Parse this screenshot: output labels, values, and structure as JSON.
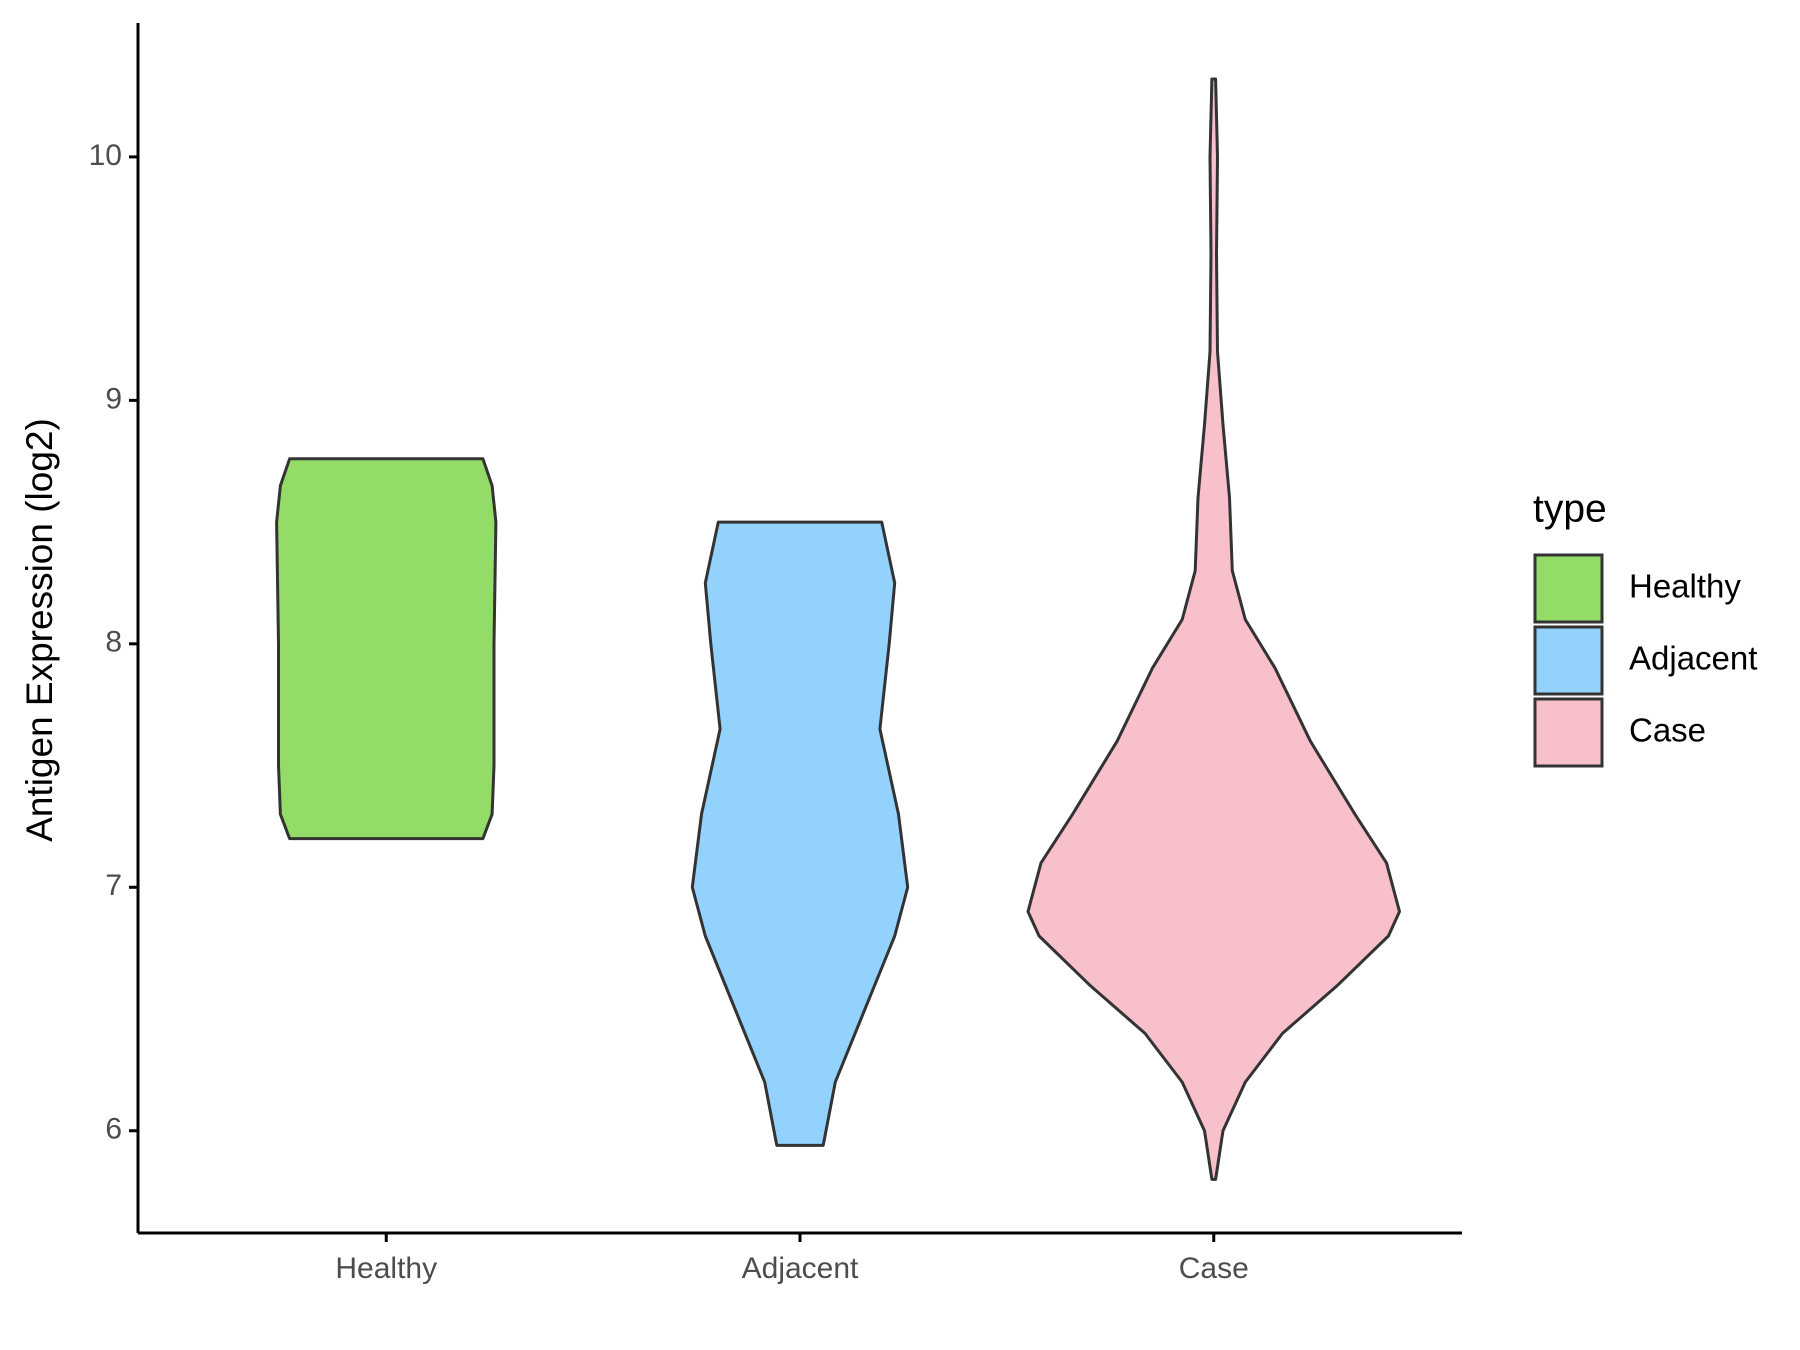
{
  "chart_data": {
    "type": "violin",
    "y_label": "Antigen Expression (log2)",
    "categories": [
      "Healthy",
      "Adjacent",
      "Case"
    ],
    "legend_title": "type",
    "legend": "right",
    "ylim": [
      5.58,
      10.55
    ],
    "yticks": [
      6,
      7,
      8,
      9,
      10
    ],
    "series": [
      {
        "name": "Healthy",
        "color": "#92dc67",
        "profile": [
          [
            7.2,
            0.52
          ],
          [
            7.3,
            0.57
          ],
          [
            7.5,
            0.58
          ],
          [
            7.75,
            0.58
          ],
          [
            8.0,
            0.58
          ],
          [
            8.5,
            0.59
          ],
          [
            8.65,
            0.57
          ],
          [
            8.76,
            0.52
          ]
        ]
      },
      {
        "name": "Adjacent",
        "color": "#92d2fd",
        "profile": [
          [
            5.94,
            0.125
          ],
          [
            6.2,
            0.19
          ],
          [
            6.5,
            0.35
          ],
          [
            6.8,
            0.51
          ],
          [
            7.0,
            0.58
          ],
          [
            7.3,
            0.53
          ],
          [
            7.65,
            0.43
          ],
          [
            8.0,
            0.48
          ],
          [
            8.25,
            0.51
          ],
          [
            8.5,
            0.44
          ]
        ]
      },
      {
        "name": "Case",
        "color": "#f7c0cb",
        "profile": [
          [
            5.8,
            0.01
          ],
          [
            6.0,
            0.05
          ],
          [
            6.2,
            0.17
          ],
          [
            6.4,
            0.37
          ],
          [
            6.6,
            0.67
          ],
          [
            6.8,
            0.94
          ],
          [
            6.9,
            1.0
          ],
          [
            7.1,
            0.93
          ],
          [
            7.3,
            0.76
          ],
          [
            7.6,
            0.52
          ],
          [
            7.9,
            0.33
          ],
          [
            8.1,
            0.17
          ],
          [
            8.3,
            0.1
          ],
          [
            8.6,
            0.085
          ],
          [
            8.9,
            0.05
          ],
          [
            9.2,
            0.02
          ],
          [
            9.6,
            0.015
          ],
          [
            10.0,
            0.02
          ],
          [
            10.32,
            0.01
          ]
        ]
      }
    ]
  }
}
